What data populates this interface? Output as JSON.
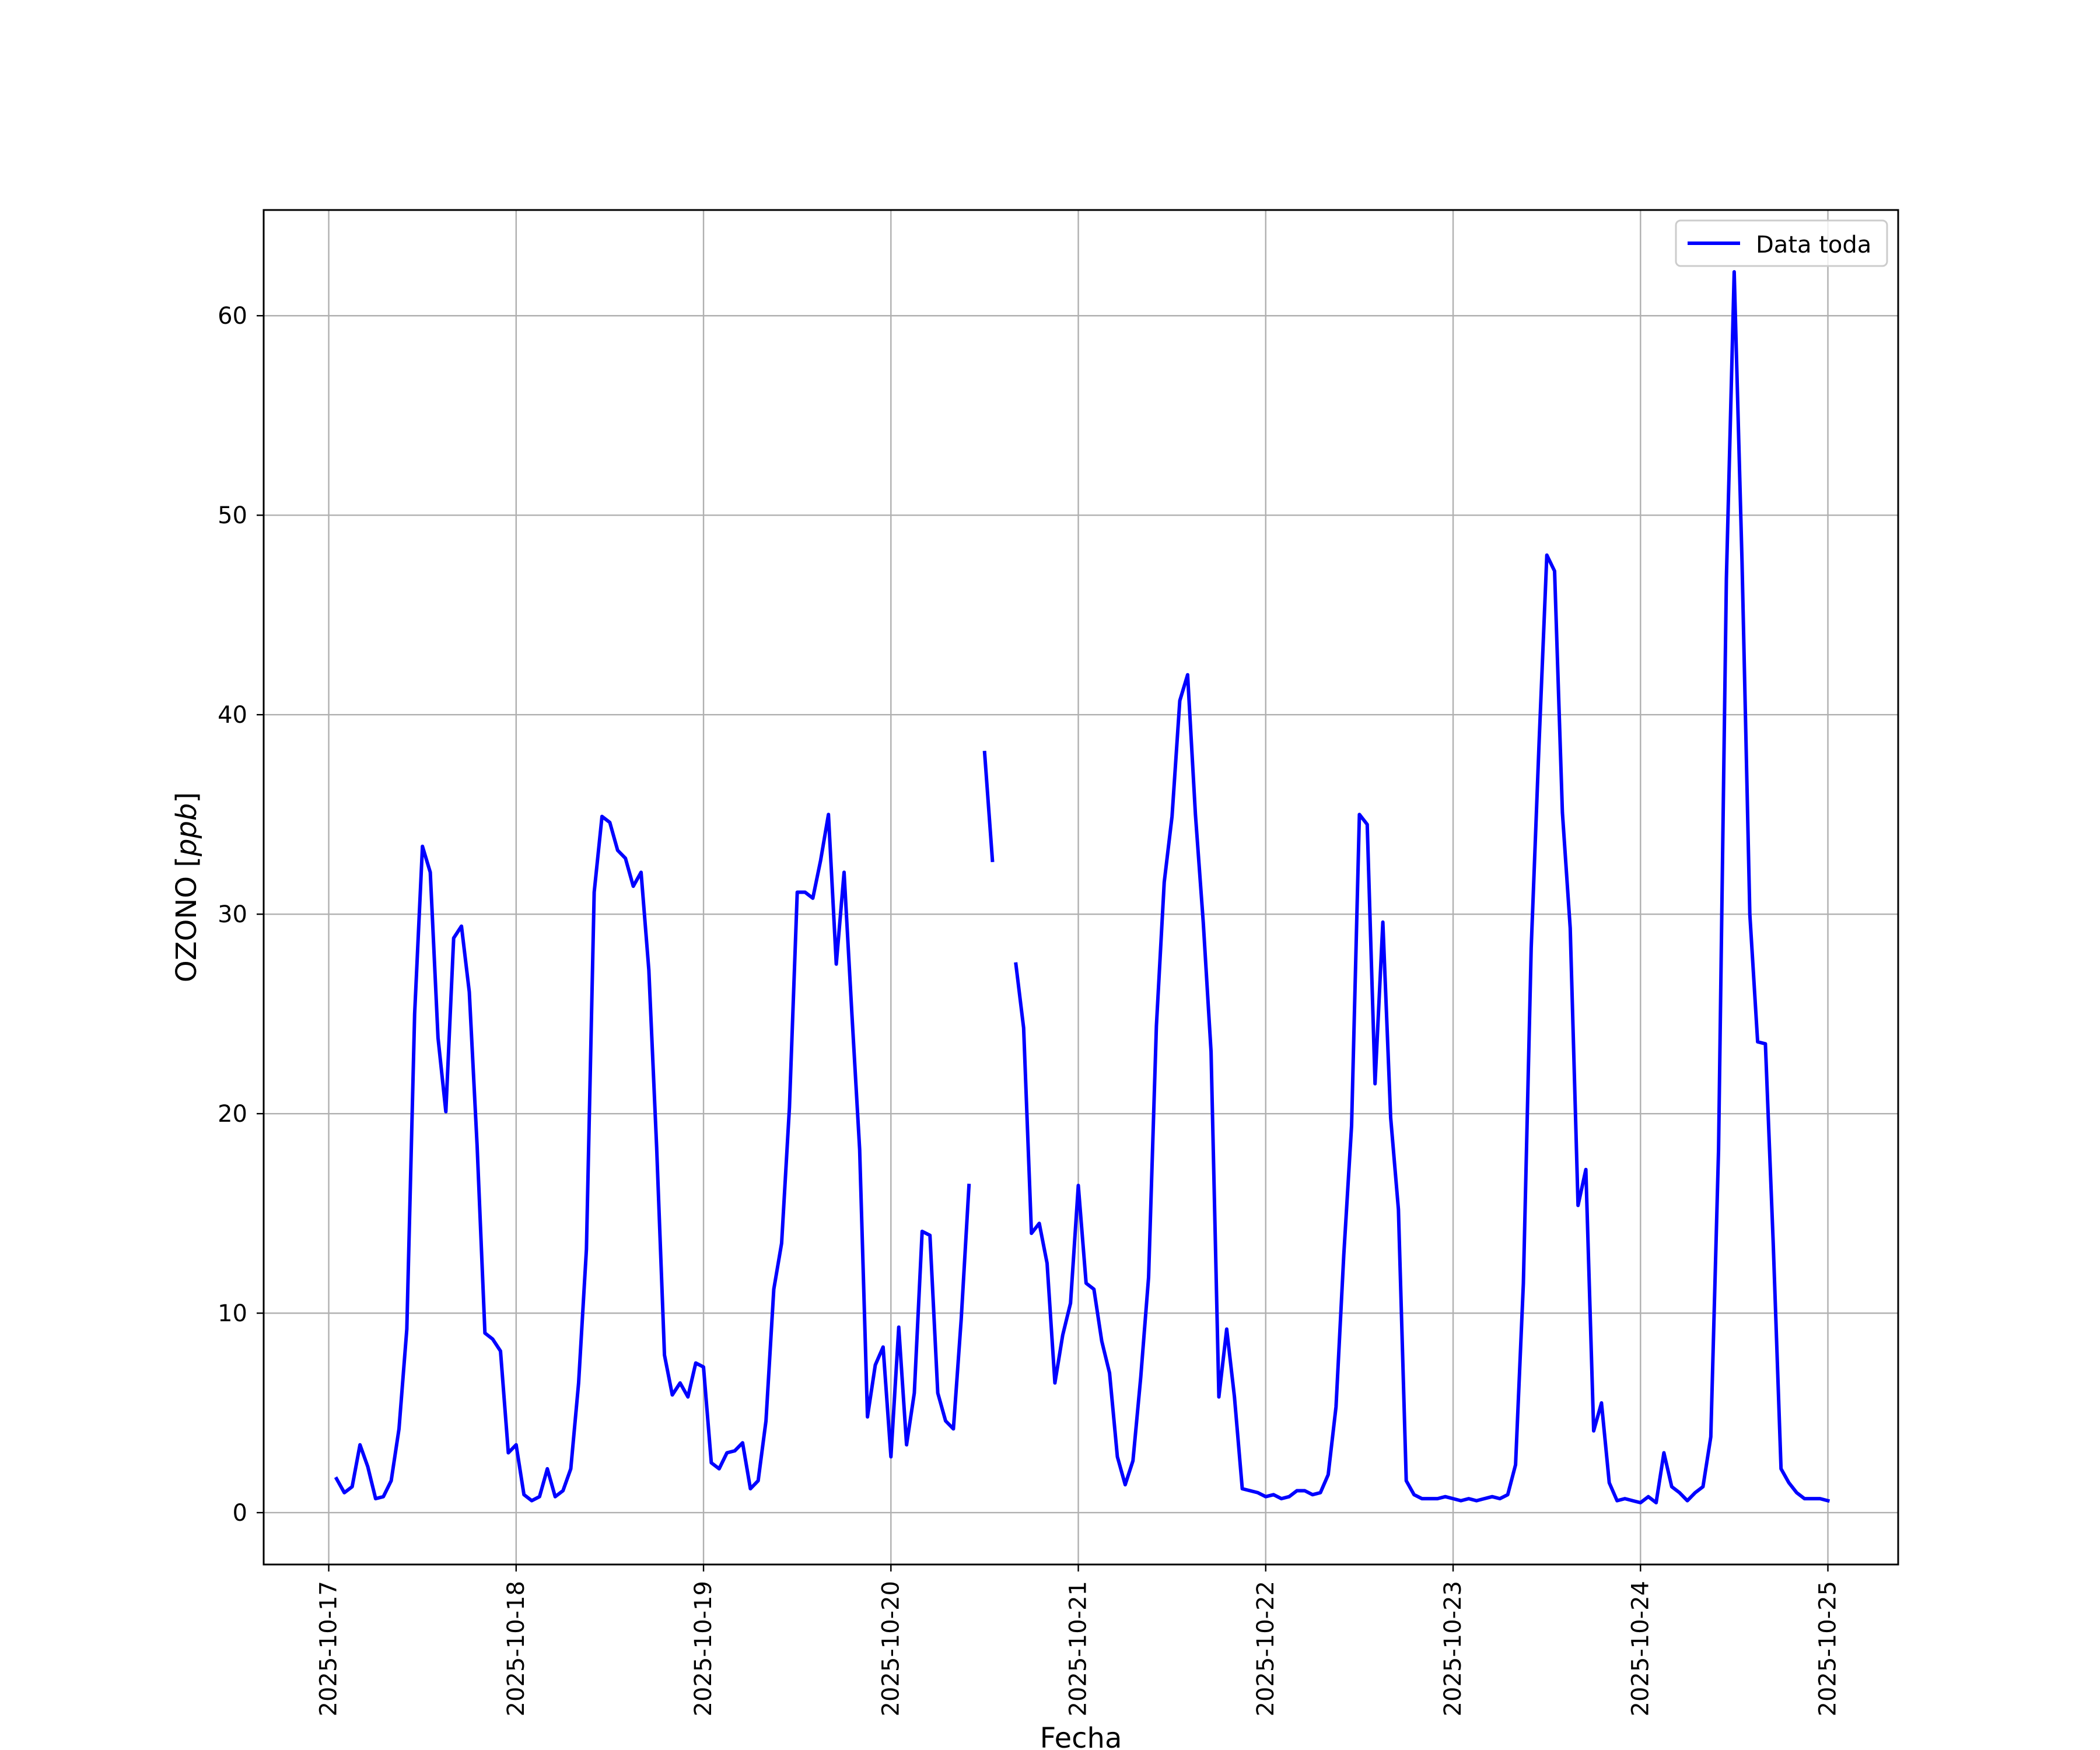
{
  "chart_data": {
    "type": "line",
    "title": "",
    "xlabel": "Fecha",
    "ylabel": "OZONO [ppb]",
    "ylabel_prefix": "OZONO ",
    "ylabel_unit": "ppb",
    "x_tick_labels": [
      "2025-10-17",
      "2025-10-18",
      "2025-10-19",
      "2025-10-20",
      "2025-10-21",
      "2025-10-22",
      "2025-10-23",
      "2025-10-24",
      "2025-10-25"
    ],
    "y_ticks": [
      0,
      10,
      20,
      30,
      40,
      50,
      60
    ],
    "xlim": [
      "2025-10-16T15:40",
      "2025-10-25T09:00"
    ],
    "ylim": [
      -2.6,
      65.3
    ],
    "grid": true,
    "legend": {
      "position": "upper right",
      "entries": [
        "Data toda"
      ]
    },
    "series": [
      {
        "name": "Data toda",
        "color": "#0000ff",
        "points": [
          [
            "2025-10-17T01:00",
            1.7
          ],
          [
            "2025-10-17T02:00",
            1.0
          ],
          [
            "2025-10-17T03:00",
            1.3
          ],
          [
            "2025-10-17T04:00",
            3.4
          ],
          [
            "2025-10-17T05:00",
            2.3
          ],
          [
            "2025-10-17T06:00",
            0.7
          ],
          [
            "2025-10-17T07:00",
            0.8
          ],
          [
            "2025-10-17T08:00",
            1.6
          ],
          [
            "2025-10-17T09:00",
            4.2
          ],
          [
            "2025-10-17T10:00",
            9.2
          ],
          [
            "2025-10-17T11:00",
            25.0
          ],
          [
            "2025-10-17T12:00",
            33.4
          ],
          [
            "2025-10-17T13:00",
            32.1
          ],
          [
            "2025-10-17T14:00",
            23.8
          ],
          [
            "2025-10-17T15:00",
            20.1
          ],
          [
            "2025-10-17T16:00",
            28.8
          ],
          [
            "2025-10-17T17:00",
            29.4
          ],
          [
            "2025-10-17T18:00",
            26.1
          ],
          [
            "2025-10-17T19:00",
            18.4
          ],
          [
            "2025-10-17T20:00",
            9.0
          ],
          [
            "2025-10-17T21:00",
            8.7
          ],
          [
            "2025-10-17T22:00",
            8.1
          ],
          [
            "2025-10-17T23:00",
            3.0
          ],
          [
            "2025-10-18T00:00",
            3.4
          ],
          [
            "2025-10-18T01:00",
            0.9
          ],
          [
            "2025-10-18T02:00",
            0.6
          ],
          [
            "2025-10-18T03:00",
            0.8
          ],
          [
            "2025-10-18T04:00",
            2.2
          ],
          [
            "2025-10-18T05:00",
            0.8
          ],
          [
            "2025-10-18T06:00",
            1.1
          ],
          [
            "2025-10-18T07:00",
            2.2
          ],
          [
            "2025-10-18T08:00",
            6.5
          ],
          [
            "2025-10-18T09:00",
            13.2
          ],
          [
            "2025-10-18T10:00",
            31.1
          ],
          [
            "2025-10-18T11:00",
            34.9
          ],
          [
            "2025-10-18T12:00",
            34.6
          ],
          [
            "2025-10-18T13:00",
            33.2
          ],
          [
            "2025-10-18T14:00",
            32.8
          ],
          [
            "2025-10-18T15:00",
            31.4
          ],
          [
            "2025-10-18T16:00",
            32.1
          ],
          [
            "2025-10-18T17:00",
            27.2
          ],
          [
            "2025-10-18T18:00",
            18.3
          ],
          [
            "2025-10-18T19:00",
            7.9
          ],
          [
            "2025-10-18T20:00",
            5.9
          ],
          [
            "2025-10-18T21:00",
            6.5
          ],
          [
            "2025-10-18T22:00",
            5.8
          ],
          [
            "2025-10-18T23:00",
            7.5
          ],
          [
            "2025-10-19T00:00",
            7.3
          ],
          [
            "2025-10-19T01:00",
            2.5
          ],
          [
            "2025-10-19T02:00",
            2.2
          ],
          [
            "2025-10-19T03:00",
            3.0
          ],
          [
            "2025-10-19T04:00",
            3.1
          ],
          [
            "2025-10-19T05:00",
            3.5
          ],
          [
            "2025-10-19T06:00",
            1.2
          ],
          [
            "2025-10-19T07:00",
            1.6
          ],
          [
            "2025-10-19T08:00",
            4.6
          ],
          [
            "2025-10-19T09:00",
            11.2
          ],
          [
            "2025-10-19T10:00",
            13.5
          ],
          [
            "2025-10-19T11:00",
            20.3
          ],
          [
            "2025-10-19T12:00",
            31.1
          ],
          [
            "2025-10-19T13:00",
            31.1
          ],
          [
            "2025-10-19T14:00",
            30.8
          ],
          [
            "2025-10-19T15:00",
            32.7
          ],
          [
            "2025-10-19T16:00",
            35.0
          ],
          [
            "2025-10-19T17:00",
            27.5
          ],
          [
            "2025-10-19T18:00",
            32.1
          ],
          [
            "2025-10-19T19:00",
            25.0
          ],
          [
            "2025-10-19T20:00",
            18.2
          ],
          [
            "2025-10-19T21:00",
            4.8
          ],
          [
            "2025-10-19T22:00",
            7.4
          ],
          [
            "2025-10-19T23:00",
            8.3
          ],
          [
            "2025-10-20T00:00",
            2.8
          ],
          [
            "2025-10-20T01:00",
            9.3
          ],
          [
            "2025-10-20T02:00",
            3.4
          ],
          [
            "2025-10-20T03:00",
            6.0
          ],
          [
            "2025-10-20T04:00",
            14.1
          ],
          [
            "2025-10-20T05:00",
            13.9
          ],
          [
            "2025-10-20T06:00",
            6.0
          ],
          [
            "2025-10-20T07:00",
            4.6
          ],
          [
            "2025-10-20T08:00",
            4.2
          ],
          [
            "2025-10-20T09:00",
            9.7
          ],
          [
            "2025-10-20T10:00",
            16.4
          ],
          null,
          [
            "2025-10-20T12:00",
            38.1
          ],
          [
            "2025-10-20T13:00",
            32.7
          ],
          null,
          [
            "2025-10-20T16:00",
            27.5
          ],
          [
            "2025-10-20T17:00",
            24.3
          ],
          [
            "2025-10-20T18:00",
            14.0
          ],
          [
            "2025-10-20T19:00",
            14.5
          ],
          [
            "2025-10-20T20:00",
            12.5
          ],
          [
            "2025-10-20T21:00",
            6.5
          ],
          [
            "2025-10-20T22:00",
            8.9
          ],
          [
            "2025-10-20T23:00",
            10.5
          ],
          [
            "2025-10-21T00:00",
            16.4
          ],
          [
            "2025-10-21T01:00",
            11.5
          ],
          [
            "2025-10-21T02:00",
            11.2
          ],
          [
            "2025-10-21T03:00",
            8.6
          ],
          [
            "2025-10-21T04:00",
            7.0
          ],
          [
            "2025-10-21T05:00",
            2.8
          ],
          [
            "2025-10-21T06:00",
            1.4
          ],
          [
            "2025-10-21T07:00",
            2.6
          ],
          [
            "2025-10-21T08:00",
            6.8
          ],
          [
            "2025-10-21T09:00",
            11.8
          ],
          [
            "2025-10-21T10:00",
            24.4
          ],
          [
            "2025-10-21T11:00",
            31.6
          ],
          [
            "2025-10-21T12:00",
            34.9
          ],
          [
            "2025-10-21T13:00",
            40.7
          ],
          [
            "2025-10-21T14:00",
            42.0
          ],
          [
            "2025-10-21T15:00",
            35.0
          ],
          [
            "2025-10-21T16:00",
            29.6
          ],
          [
            "2025-10-21T17:00",
            23.1
          ],
          [
            "2025-10-21T18:00",
            5.8
          ],
          [
            "2025-10-21T19:00",
            9.2
          ],
          [
            "2025-10-21T20:00",
            5.8
          ],
          [
            "2025-10-21T21:00",
            1.2
          ],
          [
            "2025-10-21T22:00",
            1.1
          ],
          [
            "2025-10-21T23:00",
            1.0
          ],
          [
            "2025-10-22T00:00",
            0.8
          ],
          [
            "2025-10-22T01:00",
            0.9
          ],
          [
            "2025-10-22T02:00",
            0.7
          ],
          [
            "2025-10-22T03:00",
            0.8
          ],
          [
            "2025-10-22T04:00",
            1.1
          ],
          [
            "2025-10-22T05:00",
            1.1
          ],
          [
            "2025-10-22T06:00",
            0.9
          ],
          [
            "2025-10-22T07:00",
            1.0
          ],
          [
            "2025-10-22T08:00",
            1.9
          ],
          [
            "2025-10-22T09:00",
            5.3
          ],
          [
            "2025-10-22T10:00",
            12.9
          ],
          [
            "2025-10-22T11:00",
            19.4
          ],
          [
            "2025-10-22T12:00",
            35.0
          ],
          [
            "2025-10-22T13:00",
            34.5
          ],
          [
            "2025-10-22T14:00",
            21.5
          ],
          [
            "2025-10-22T15:00",
            29.6
          ],
          [
            "2025-10-22T16:00",
            19.8
          ],
          [
            "2025-10-22T17:00",
            15.2
          ],
          [
            "2025-10-22T18:00",
            1.6
          ],
          [
            "2025-10-22T19:00",
            0.9
          ],
          [
            "2025-10-22T20:00",
            0.7
          ],
          [
            "2025-10-22T21:00",
            0.7
          ],
          [
            "2025-10-22T22:00",
            0.7
          ],
          [
            "2025-10-22T23:00",
            0.8
          ],
          [
            "2025-10-23T00:00",
            0.7
          ],
          [
            "2025-10-23T01:00",
            0.6
          ],
          [
            "2025-10-23T02:00",
            0.7
          ],
          [
            "2025-10-23T03:00",
            0.6
          ],
          [
            "2025-10-23T04:00",
            0.7
          ],
          [
            "2025-10-23T05:00",
            0.8
          ],
          [
            "2025-10-23T06:00",
            0.7
          ],
          [
            "2025-10-23T07:00",
            0.9
          ],
          [
            "2025-10-23T08:00",
            2.4
          ],
          [
            "2025-10-23T09:00",
            11.5
          ],
          [
            "2025-10-23T10:00",
            28.3
          ],
          [
            "2025-10-23T11:00",
            38.5
          ],
          [
            "2025-10-23T12:00",
            48.0
          ],
          [
            "2025-10-23T13:00",
            47.2
          ],
          [
            "2025-10-23T14:00",
            35.1
          ],
          [
            "2025-10-23T15:00",
            29.3
          ],
          [
            "2025-10-23T16:00",
            15.4
          ],
          [
            "2025-10-23T17:00",
            17.2
          ],
          [
            "2025-10-23T18:00",
            4.1
          ],
          [
            "2025-10-23T19:00",
            5.5
          ],
          [
            "2025-10-23T20:00",
            1.5
          ],
          [
            "2025-10-23T21:00",
            0.6
          ],
          [
            "2025-10-23T22:00",
            0.7
          ],
          [
            "2025-10-23T23:00",
            0.6
          ],
          [
            "2025-10-24T00:00",
            0.5
          ],
          [
            "2025-10-24T01:00",
            0.8
          ],
          [
            "2025-10-24T02:00",
            0.5
          ],
          [
            "2025-10-24T03:00",
            3.0
          ],
          [
            "2025-10-24T04:00",
            1.3
          ],
          [
            "2025-10-24T05:00",
            1.0
          ],
          [
            "2025-10-24T06:00",
            0.6
          ],
          [
            "2025-10-24T07:00",
            1.0
          ],
          [
            "2025-10-24T08:00",
            1.3
          ],
          [
            "2025-10-24T09:00",
            3.8
          ],
          [
            "2025-10-24T10:00",
            18.2
          ],
          [
            "2025-10-24T11:00",
            46.8
          ],
          [
            "2025-10-24T12:00",
            62.2
          ],
          [
            "2025-10-24T13:00",
            47.7
          ],
          [
            "2025-10-24T14:00",
            30.0
          ],
          [
            "2025-10-24T15:00",
            23.6
          ],
          [
            "2025-10-24T16:00",
            23.5
          ],
          [
            "2025-10-24T17:00",
            13.5
          ],
          [
            "2025-10-24T18:00",
            2.2
          ],
          [
            "2025-10-24T19:00",
            1.5
          ],
          [
            "2025-10-24T20:00",
            1.0
          ],
          [
            "2025-10-24T21:00",
            0.7
          ],
          [
            "2025-10-24T22:00",
            0.7
          ],
          [
            "2025-10-24T23:00",
            0.7
          ],
          [
            "2025-10-25T00:00",
            0.6
          ]
        ]
      }
    ]
  }
}
